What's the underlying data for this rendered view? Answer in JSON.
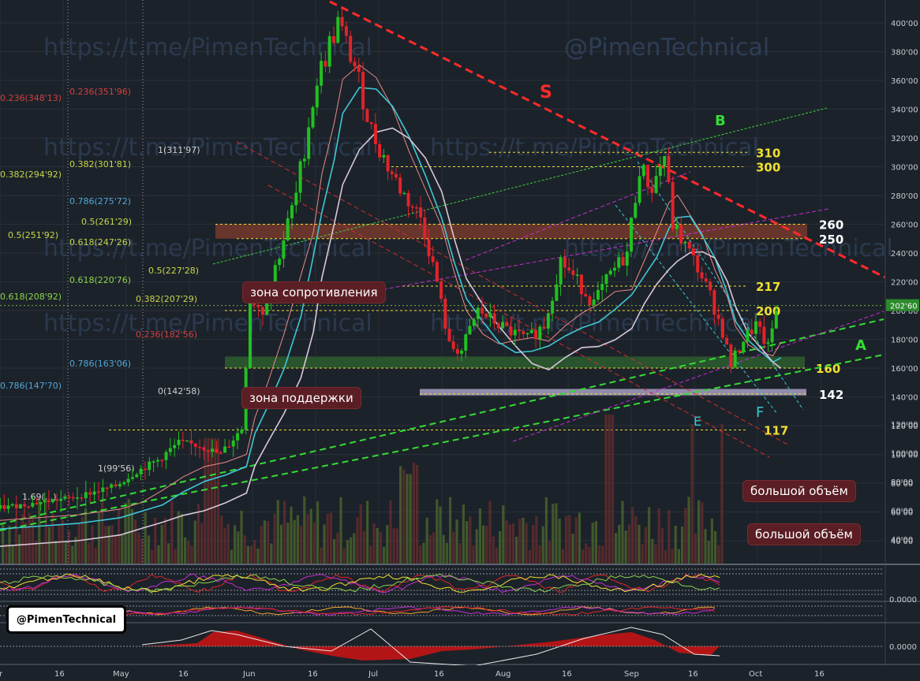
{
  "watermarks": [
    "https://t.me/PimenTechnical",
    "@PimenTechnical",
    "https://t.me/PimenTechnical",
    "https://t.me/PimenTechnical",
    "https://t.me/PimenTechnical",
    "https://t.me/PimenTechnical",
    "https://t.me/PimenTechnical"
  ],
  "badge": "@PimenTechnical",
  "callouts": {
    "resistance": "зона сопротивления",
    "support": "зона поддержки",
    "volume1": "большой объём",
    "volume2": "большой объём"
  },
  "colors": {
    "bull": "#21c021",
    "bear": "#e0242a",
    "background": "#1c222a",
    "trend_red": "#ff2a2a",
    "trend_green": "#33dd33",
    "level_yellow": "#f0e030",
    "fib_cyan": "#4fa8d8"
  },
  "chart_data": [
    {
      "type": "candlestick",
      "y_axis": {
        "min": 30,
        "max": 410,
        "ticks": [
          "400'00",
          "380'00",
          "360'00",
          "340'00",
          "320'00",
          "300'00",
          "280'00",
          "260'00",
          "240'00",
          "220'00",
          "200'00",
          "180'00",
          "160'00",
          "140'00",
          "120'00",
          "100'00",
          "80'00",
          "60'00",
          "40'00"
        ]
      },
      "current_price": "202'60",
      "x_axis": {
        "ticks": [
          "r",
          "16",
          "May",
          "16",
          "Jun",
          "16",
          "Jul",
          "16",
          "Aug",
          "16",
          "Sep",
          "16",
          "Oct",
          "16"
        ]
      },
      "close_path": [
        {
          "date": "Apr 1",
          "close": 62
        },
        {
          "date": "Apr 20",
          "close": 70
        },
        {
          "date": "Apr 30",
          "close": 78
        },
        {
          "date": "May 5",
          "close": 88
        },
        {
          "date": "May 10",
          "close": 96
        },
        {
          "date": "May 15",
          "close": 108
        },
        {
          "date": "May 20",
          "close": 106
        },
        {
          "date": "May 25",
          "close": 100
        },
        {
          "date": "May 30",
          "close": 118
        },
        {
          "date": "Jun 1",
          "close": 210
        },
        {
          "date": "Jun 4",
          "close": 200
        },
        {
          "date": "Jun 8",
          "close": 240
        },
        {
          "date": "Jun 12",
          "close": 280
        },
        {
          "date": "Jun 15",
          "close": 330
        },
        {
          "date": "Jun 17",
          "close": 360
        },
        {
          "date": "Jun 20",
          "close": 385
        },
        {
          "date": "Jun 22",
          "close": 400
        },
        {
          "date": "Jun 26",
          "close": 370
        },
        {
          "date": "Jun 30",
          "close": 325
        },
        {
          "date": "Jul 4",
          "close": 300
        },
        {
          "date": "Jul 8",
          "close": 280
        },
        {
          "date": "Jul 12",
          "close": 265
        },
        {
          "date": "Jul 16",
          "close": 220
        },
        {
          "date": "Jul 19",
          "close": 175
        },
        {
          "date": "Jul 22",
          "close": 172
        },
        {
          "date": "Jul 26",
          "close": 200
        },
        {
          "date": "Jul 30",
          "close": 192
        },
        {
          "date": "Aug 3",
          "close": 185
        },
        {
          "date": "Aug 7",
          "close": 180
        },
        {
          "date": "Aug 11",
          "close": 190
        },
        {
          "date": "Aug 15",
          "close": 235
        },
        {
          "date": "Aug 19",
          "close": 220
        },
        {
          "date": "Aug 23",
          "close": 205
        },
        {
          "date": "Aug 27",
          "close": 225
        },
        {
          "date": "Aug 31",
          "close": 240
        },
        {
          "date": "Sep 3",
          "close": 300
        },
        {
          "date": "Sep 6",
          "close": 285
        },
        {
          "date": "Sep 9",
          "close": 308
        },
        {
          "date": "Sep 11",
          "close": 260
        },
        {
          "date": "Sep 14",
          "close": 245
        },
        {
          "date": "Sep 17",
          "close": 230
        },
        {
          "date": "Sep 20",
          "close": 210
        },
        {
          "date": "Sep 23",
          "close": 185
        },
        {
          "date": "Sep 25",
          "close": 162
        },
        {
          "date": "Sep 28",
          "close": 180
        },
        {
          "date": "Oct 1",
          "close": 190
        },
        {
          "date": "Oct 4",
          "close": 174
        },
        {
          "date": "Oct 6",
          "close": 200
        }
      ],
      "horizontal_levels": [
        {
          "label": "310",
          "value": 310
        },
        {
          "label": "300",
          "value": 300
        },
        {
          "label": "260",
          "value": 260
        },
        {
          "label": "250",
          "value": 250
        },
        {
          "label": "217",
          "value": 217
        },
        {
          "label": "200",
          "value": 200
        },
        {
          "label": "160",
          "value": 160
        },
        {
          "label": "142",
          "value": 142
        },
        {
          "label": "117",
          "value": 117
        }
      ],
      "fib_labels_left": [
        "0.236(348'13)",
        "0.382(294'92)",
        "0.5(251'92)",
        "0.618(208'92)",
        "0.786(147'70)",
        "1.69(...)"
      ],
      "fib_labels_mid": [
        "0.236(351'96)",
        "1(311'97)",
        "0.382(301'81)",
        "0.786(275'72)",
        "0.5(261'29)",
        "0.618(247'26)",
        "0.618(220'76)",
        "0.5(227'28)",
        "0.382(207'29)",
        "0.236(182'56)",
        "0.786(163'06)",
        "0(142'58)",
        "1(99'56)"
      ],
      "trendline_labels": [
        "S",
        "B",
        "A",
        "E",
        "F"
      ],
      "volume_axis_ticks": [
        "120'00",
        "100'00",
        "80'00",
        "60'00",
        "40'00"
      ]
    },
    {
      "type": "line",
      "panel": "oscillator-1",
      "series": []
    },
    {
      "type": "line",
      "panel": "oscillator-2",
      "y_axis": {
        "ticks": [
          "0.0000"
        ]
      }
    },
    {
      "type": "area",
      "panel": "macd",
      "y_axis": {
        "ticks": [
          "0.0000"
        ]
      }
    }
  ]
}
